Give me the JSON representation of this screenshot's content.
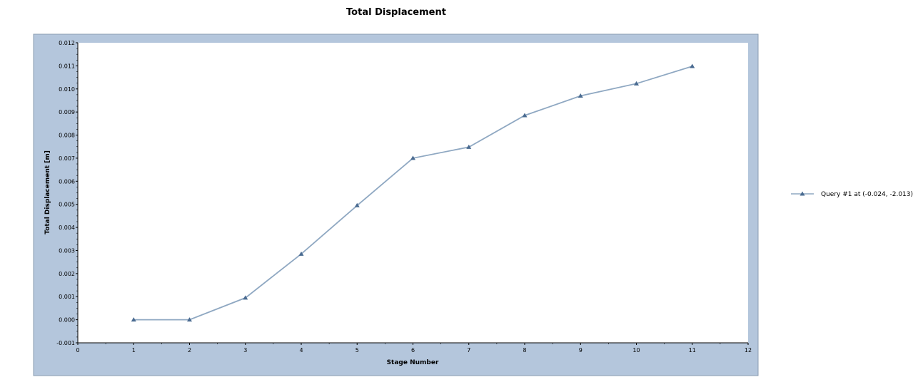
{
  "chart_data": {
    "type": "line",
    "title": "Total Displacement",
    "xlabel": "Stage Number",
    "ylabel": "Total Displacement [m]",
    "xlim": [
      0,
      12
    ],
    "ylim": [
      -0.001,
      0.012
    ],
    "x_ticks": [
      "0",
      "1",
      "2",
      "3",
      "4",
      "5",
      "6",
      "7",
      "8",
      "9",
      "10",
      "11",
      "12"
    ],
    "y_ticks": [
      "-0.001",
      "0.000",
      "0.001",
      "0.002",
      "0.003",
      "0.004",
      "0.005",
      "0.006",
      "0.007",
      "0.008",
      "0.009",
      "0.010",
      "0.011",
      "0.012"
    ],
    "grid": false,
    "legend_position": "right",
    "colors": {
      "frame": "#b4c6dc",
      "line": "#8fa8c2",
      "marker": "#4a6b91"
    },
    "series": [
      {
        "name": "Query #1 at (-0.024, -2.013)",
        "marker": "triangle",
        "x": [
          1,
          2,
          3,
          4,
          5,
          6,
          7,
          8,
          9,
          10,
          11
        ],
        "y": [
          0.0,
          0.0,
          0.00095,
          0.00285,
          0.00495,
          0.007,
          0.00748,
          0.00885,
          0.0097,
          0.01023,
          0.01098
        ]
      }
    ]
  }
}
